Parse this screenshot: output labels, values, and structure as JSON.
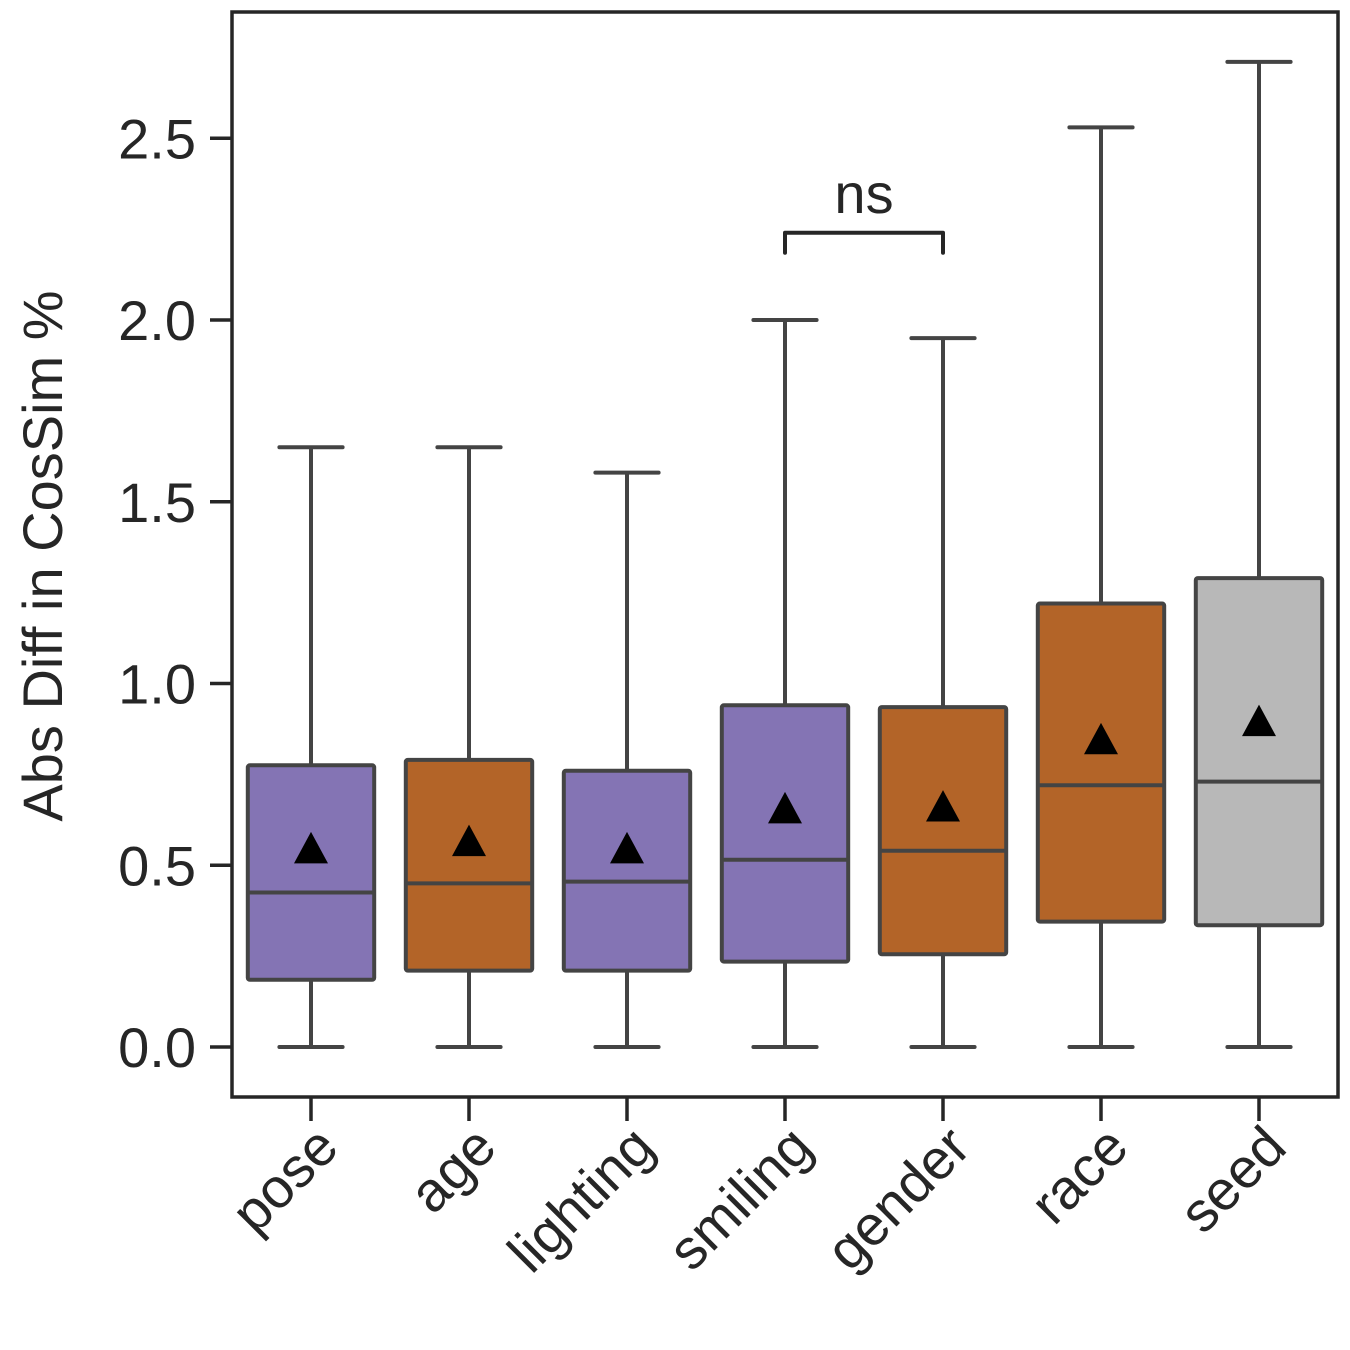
{
  "chart_data": {
    "type": "box",
    "title": "",
    "xlabel": "",
    "ylabel": "Abs Diff in CosSim %",
    "ylim": [
      -0.13,
      2.85
    ],
    "yticks": [
      0.0,
      0.5,
      1.0,
      1.5,
      2.0,
      2.5
    ],
    "ytick_labels": [
      "0.0",
      "0.5",
      "1.0",
      "1.5",
      "2.0",
      "2.5"
    ],
    "categories": [
      "pose",
      "age",
      "lighting",
      "smiling",
      "gender",
      "race",
      "seed"
    ],
    "boxes": [
      {
        "label": "pose",
        "whisker_low": 0.0,
        "q1": 0.185,
        "median": 0.425,
        "q3": 0.775,
        "whisker_high": 1.65,
        "mean": 0.545,
        "color": "#8474b4"
      },
      {
        "label": "age",
        "whisker_low": 0.0,
        "q1": 0.21,
        "median": 0.45,
        "q3": 0.79,
        "whisker_high": 1.65,
        "mean": 0.565,
        "color": "#b36428"
      },
      {
        "label": "lighting",
        "whisker_low": 0.0,
        "q1": 0.21,
        "median": 0.455,
        "q3": 0.76,
        "whisker_high": 1.58,
        "mean": 0.545,
        "color": "#8474b4"
      },
      {
        "label": "smiling",
        "whisker_low": 0.0,
        "q1": 0.235,
        "median": 0.515,
        "q3": 0.94,
        "whisker_high": 2.0,
        "mean": 0.655,
        "color": "#8474b4"
      },
      {
        "label": "gender",
        "whisker_low": 0.0,
        "q1": 0.255,
        "median": 0.54,
        "q3": 0.935,
        "whisker_high": 1.95,
        "mean": 0.66,
        "color": "#b36428"
      },
      {
        "label": "race",
        "whisker_low": 0.0,
        "q1": 0.345,
        "median": 0.72,
        "q3": 1.22,
        "whisker_high": 2.53,
        "mean": 0.845,
        "color": "#b36428"
      },
      {
        "label": "seed",
        "whisker_low": 0.0,
        "q1": 0.335,
        "median": 0.73,
        "q3": 1.29,
        "whisker_high": 2.71,
        "mean": 0.895,
        "color": "#b8b8b8"
      }
    ],
    "annotations": [
      {
        "text": "ns",
        "from": "smiling",
        "to": "gender",
        "y": 2.24
      }
    ]
  }
}
